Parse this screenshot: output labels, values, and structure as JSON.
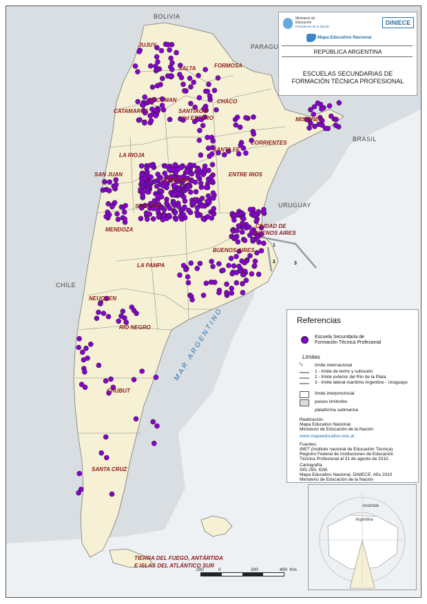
{
  "countries": {
    "bolivia": "BOLIVIA",
    "paraguay": "PARAGUAY",
    "brasil": "BRASIL",
    "uruguay": "URUGUAY",
    "chile": "CHILE"
  },
  "sea_label": "MAR ARGENTINO",
  "provinces": {
    "jujuy": "JUJUY",
    "salta": "SALTA",
    "formosa": "FORMOSA",
    "tucuman": "TUCUMAN",
    "catamarca": "CATAMARCA",
    "santiago": "SANTIAGO",
    "del_estero": "del ESTERO",
    "chaco": "CHACO",
    "misiones": "MISIONES",
    "santa_fe": "SANTA FE",
    "corrientes": "CORRIENTES",
    "la_rioja": "LA RIOJA",
    "san_juan": "SAN JUAN",
    "cordoba": "CORDOBA",
    "entre_rios": "ENTRE RIOS",
    "san_luis": "SAN LUIS",
    "mendoza": "MENDOZA",
    "caba_1": "CIUDAD DE",
    "caba_2": "BUENOS AIRES",
    "buenos_aires": "BUENOS AIRES",
    "la_pampa": "LA PAMPA",
    "neuquen": "NEUQUEN",
    "rio_negro": "RIO NEGRO",
    "chubut": "CHUBUT",
    "santa_cruz": "SANTA CRUZ",
    "tdf_1": "TIERRA DEL FUEGO, ANTÁRTIDA",
    "tdf_2": "E ISLAS DEL ATLÁNTICO SUR"
  },
  "rio_plata_markers": [
    "1",
    "2",
    "3"
  ],
  "header": {
    "ministry_1": "Ministerio de",
    "ministry_2": "Educación",
    "ministry_3": "Presidencia de la Nación",
    "diniece": "DiNIECE",
    "brand": "Mapa Educativo Nacional",
    "country": "REPÚBLICA ARGENTINA",
    "title_1": "ESCUELAS SECUNDARIAS DE",
    "title_2": "FORMACIÓN TÉCNICA PROFESIONAL"
  },
  "legend": {
    "title": "Referencias",
    "school_1": "Escuela Secundaria de",
    "school_2": "Formación Técnica Profesional",
    "limits_title": "Límites",
    "limit_international": "límite internacional",
    "limit_1": "1 - límite de lecho y subsuelo",
    "limit_2": "2 - límite exterior del Río de la Plata",
    "limit_3": "3 - límite lateral marítimo Argentino - Uruguayo",
    "limit_interprov": "límite interprovincial",
    "neighbours": "países limítrofes",
    "shelf": "plataforma submarina",
    "realizacion_title": "Realización:",
    "realizacion_1": "Mapa Educativo Nacional.",
    "realizacion_2": "Ministerio de Educación de la Nación",
    "url": "www.mapaeducativo.edu.ar",
    "fuentes_title": "Fuentes:",
    "fuentes_1": "INET (Instituto nacional de Educación Técnica)",
    "fuentes_2": "Registro Federal de Instituciones de Educación",
    "fuentes_3": "Técnica Profesional al 31 de agosto de 2010.",
    "carto_title": "Cartografía",
    "carto_1": "SIG 250, IGM.",
    "carto_2": "Mapa Educativo Nacional, DiNIECE. Año 2010",
    "carto_3": "Ministerio de Educación de la Nación"
  },
  "inset": {
    "antartida": "Antártida",
    "argentina": "Argentina"
  },
  "scale": {
    "ticks": [
      "200",
      "0",
      "200",
      "400"
    ],
    "unit": "Km"
  },
  "colors": {
    "school_dot": "#8a00d4",
    "land": "#f6f1d4",
    "neighbour": "#dde1e4",
    "province_label": "#8b1a1a"
  }
}
